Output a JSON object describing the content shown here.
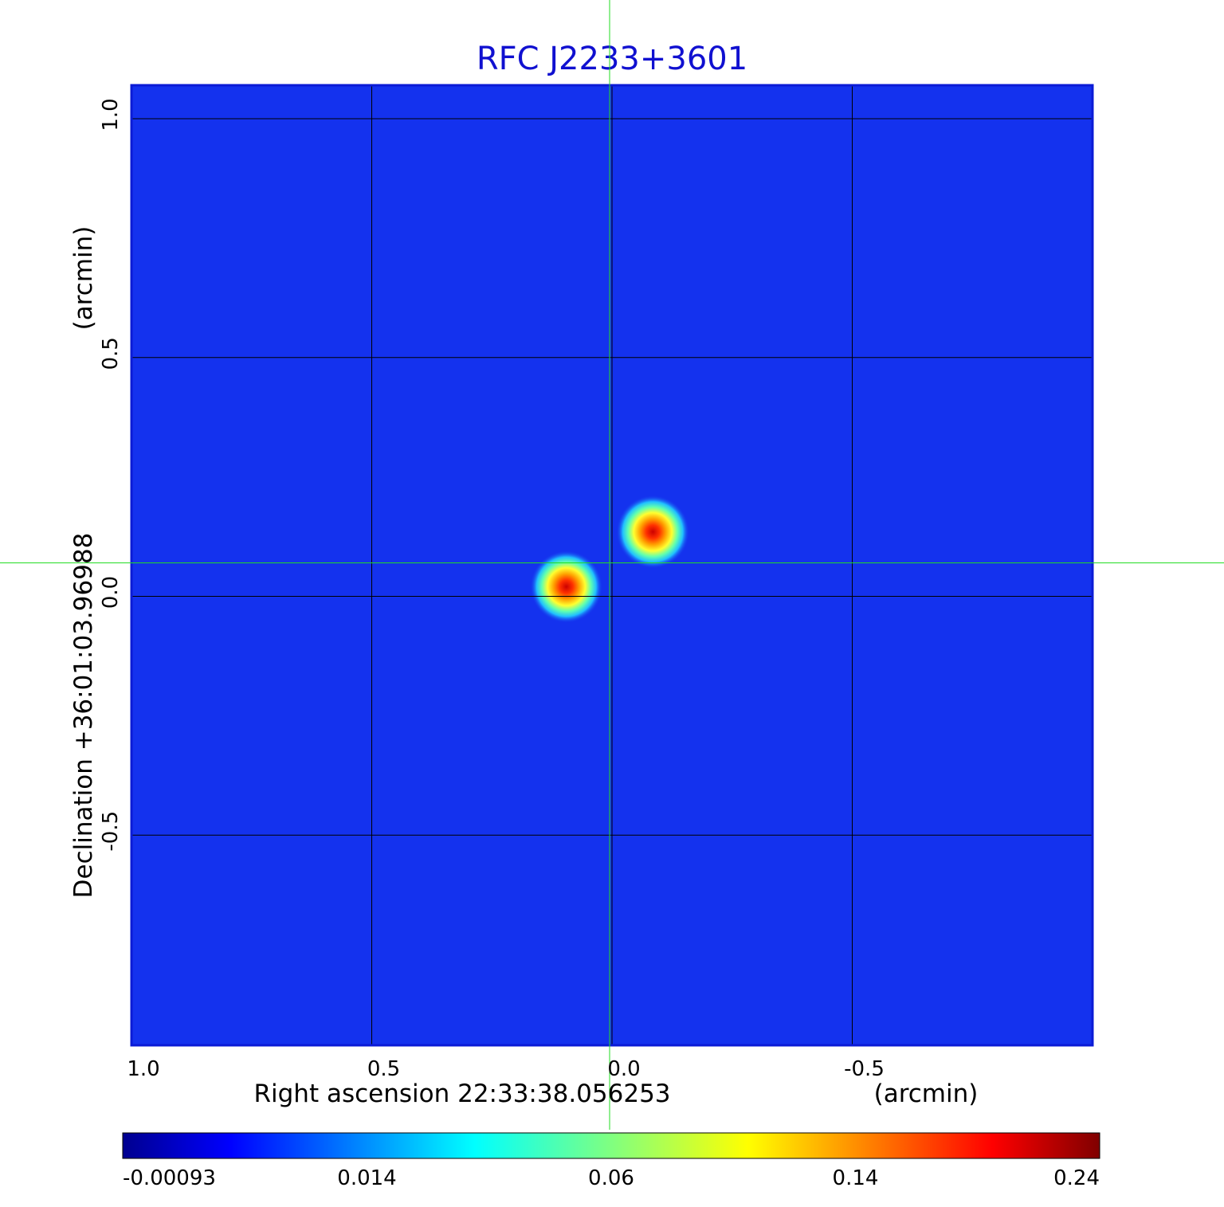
{
  "chart_data": {
    "type": "heatmap",
    "title": "RFC J2233+3601",
    "xlabel": "Right ascension  22:33:38.056253",
    "xunit": "(arcmin)",
    "ylabel": "Declination  +36:01:03.96988",
    "yunit": "(arcmin)",
    "xlim": [
      1.0,
      -1.0
    ],
    "ylim": [
      -0.94,
      1.07
    ],
    "xticks": [
      1.0,
      0.5,
      0.0,
      -0.5
    ],
    "xtick_labels": [
      "1.0",
      "0.5",
      "0.0",
      "-0.5"
    ],
    "yticks": [
      1.0,
      0.5,
      0.0,
      -0.5
    ],
    "ytick_labels": [
      "1.0",
      "0.5",
      "0.0",
      "-0.5"
    ],
    "grid": true,
    "crosshair": {
      "x": 0.0,
      "y": 0.07
    },
    "colormap": "jet",
    "colorbar": {
      "min": -0.00093,
      "max": 0.24,
      "ticks": [
        -0.00093,
        0.014,
        0.06,
        0.14,
        0.24
      ],
      "tick_labels": [
        "-0.00093",
        "0.014",
        "0.06",
        "0.14",
        "0.24"
      ]
    },
    "sources": [
      {
        "x": -0.085,
        "y": 0.135,
        "peak": 0.24
      },
      {
        "x": 0.095,
        "y": 0.02,
        "peak": 0.22
      }
    ],
    "background_level": 0.0
  },
  "colors": {
    "title": "#1010d0",
    "background_map": "#1432ee",
    "frame": "#0b1bd6",
    "grid": "#000000",
    "crosshair": "#22dd22"
  }
}
